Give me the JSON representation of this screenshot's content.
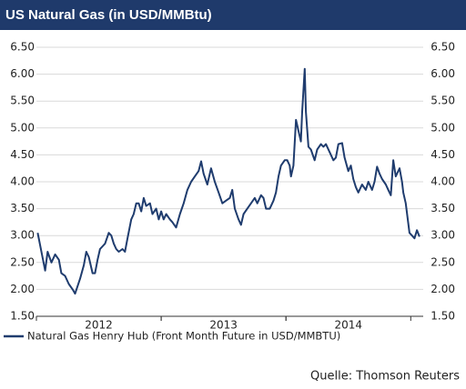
{
  "chart_data": {
    "type": "line",
    "title": "US Natural Gas (in USD/MMBtu)",
    "source": "Quelle: Thomson Reuters",
    "x": [
      2012.01,
      2012.07,
      2012.09,
      2012.12,
      2012.15,
      2012.18,
      2012.2,
      2012.23,
      2012.26,
      2012.29,
      2012.31,
      2012.35,
      2012.38,
      2012.4,
      2012.42,
      2012.45,
      2012.47,
      2012.49,
      2012.51,
      2012.53,
      2012.55,
      2012.58,
      2012.6,
      2012.62,
      2012.64,
      2012.66,
      2012.69,
      2012.71,
      2012.73,
      2012.76,
      2012.78,
      2012.8,
      2012.82,
      2012.84,
      2012.86,
      2012.88,
      2012.91,
      2012.93,
      2012.96,
      2012.98,
      2013.0,
      2013.02,
      2013.04,
      2013.07,
      2013.09,
      2013.12,
      2013.15,
      2013.18,
      2013.21,
      2013.24,
      2013.27,
      2013.3,
      2013.32,
      2013.34,
      2013.37,
      2013.4,
      2013.43,
      2013.46,
      2013.49,
      2013.52,
      2013.55,
      2013.57,
      2013.59,
      2013.62,
      2013.64,
      2013.66,
      2013.69,
      2013.72,
      2013.75,
      2013.77,
      2013.8,
      2013.82,
      2013.84,
      2013.87,
      2013.9,
      2013.92,
      2013.94,
      2013.96,
      2013.99,
      2014.01,
      2014.03,
      2014.04,
      2014.06,
      2014.08,
      2014.1,
      2014.12,
      2014.13,
      2014.15,
      2014.16,
      2014.18,
      2014.2,
      2014.23,
      2014.25,
      2014.28,
      2014.3,
      2014.32,
      2014.35,
      2014.38,
      2014.4,
      2014.42,
      2014.45,
      2014.47,
      2014.5,
      2014.52,
      2014.54,
      2014.56,
      2014.58,
      2014.61,
      2014.64,
      2014.66,
      2014.69,
      2014.71,
      2014.73,
      2014.75,
      2014.77,
      2014.8,
      2014.82,
      2014.84,
      2014.86,
      2014.88,
      2014.91,
      2014.93,
      2014.94,
      2014.96,
      2014.99,
      2015.01,
      2015.03,
      2015.05,
      2015.07
    ],
    "series": [
      {
        "name": "Natural Gas Henry Hub (Front Month Future in USD/MMBTU)",
        "color": "#1f3c6e",
        "values": [
          3.05,
          2.35,
          2.7,
          2.5,
          2.65,
          2.55,
          2.3,
          2.25,
          2.1,
          2.0,
          1.92,
          2.2,
          2.45,
          2.7,
          2.6,
          2.3,
          2.3,
          2.55,
          2.75,
          2.8,
          2.85,
          3.05,
          3.0,
          2.85,
          2.75,
          2.7,
          2.75,
          2.7,
          2.95,
          3.3,
          3.4,
          3.6,
          3.6,
          3.45,
          3.7,
          3.55,
          3.6,
          3.4,
          3.5,
          3.3,
          3.45,
          3.3,
          3.4,
          3.3,
          3.25,
          3.15,
          3.4,
          3.6,
          3.85,
          4.0,
          4.1,
          4.2,
          4.38,
          4.15,
          3.95,
          4.25,
          4.0,
          3.8,
          3.6,
          3.65,
          3.7,
          3.85,
          3.5,
          3.3,
          3.2,
          3.4,
          3.5,
          3.6,
          3.7,
          3.6,
          3.75,
          3.7,
          3.5,
          3.5,
          3.65,
          3.8,
          4.1,
          4.3,
          4.4,
          4.4,
          4.3,
          4.1,
          4.3,
          5.15,
          4.95,
          4.75,
          5.3,
          6.1,
          5.3,
          4.65,
          4.6,
          4.4,
          4.6,
          4.7,
          4.65,
          4.7,
          4.55,
          4.4,
          4.45,
          4.7,
          4.72,
          4.45,
          4.2,
          4.3,
          4.05,
          3.9,
          3.8,
          3.95,
          3.85,
          4.0,
          3.85,
          4.0,
          4.28,
          4.15,
          4.05,
          3.95,
          3.85,
          3.75,
          4.4,
          4.1,
          4.25,
          4.0,
          3.8,
          3.6,
          3.05,
          3.0,
          2.95,
          3.1,
          2.98
        ]
      }
    ],
    "xlim": [
      2012,
      2015.1
    ],
    "xticks": [
      {
        "value": 2012.5,
        "label": "2012"
      },
      {
        "value": 2013.5,
        "label": "2013"
      },
      {
        "value": 2014.5,
        "label": "2014"
      }
    ],
    "ylim": [
      1.5,
      6.5
    ],
    "yticks": [
      {
        "value": 1.5,
        "label": "1.50"
      },
      {
        "value": 2,
        "label": "2.00"
      },
      {
        "value": 2.5,
        "label": "2.50"
      },
      {
        "value": 3,
        "label": "3.00"
      },
      {
        "value": 3.5,
        "label": "3.50"
      },
      {
        "value": 4,
        "label": "4.00"
      },
      {
        "value": 4.5,
        "label": "4.50"
      },
      {
        "value": 5,
        "label": "5.00"
      },
      {
        "value": 5.5,
        "label": "5.50"
      },
      {
        "value": 6,
        "label": "6.00"
      },
      {
        "value": 6.5,
        "label": "6.50"
      }
    ],
    "y2lim": [
      1.5,
      6.5
    ],
    "y2ticks": [
      {
        "value": 1.5,
        "label": "1.50"
      },
      {
        "value": 2,
        "label": "2.00"
      },
      {
        "value": 2.5,
        "label": "2.50"
      },
      {
        "value": 3,
        "label": "3.00"
      },
      {
        "value": 3.5,
        "label": "3.50"
      },
      {
        "value": 4,
        "label": "4.00"
      },
      {
        "value": 4.5,
        "label": "4.50"
      },
      {
        "value": 5,
        "label": "5.00"
      },
      {
        "value": 5.5,
        "label": "5.50"
      },
      {
        "value": 6,
        "label": "6.00"
      },
      {
        "value": 6.5,
        "label": "6.50"
      }
    ],
    "grid": true,
    "legend": "bottom"
  }
}
